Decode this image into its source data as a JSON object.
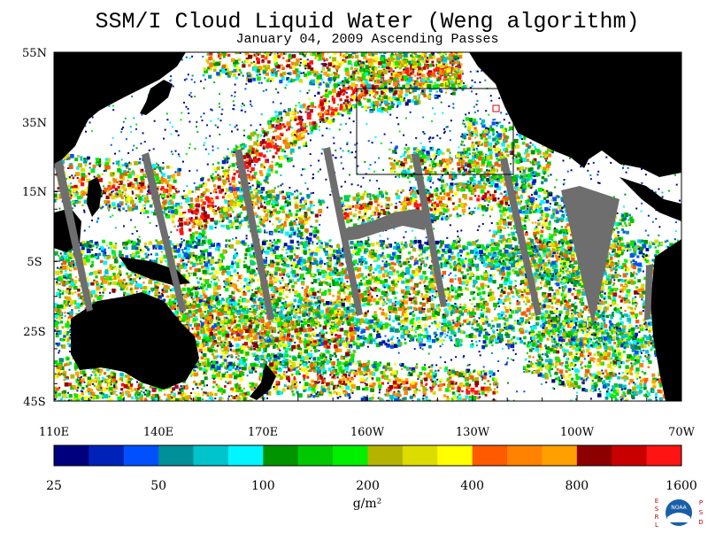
{
  "title": "SSM/I Cloud Liquid Water (Weng algorithm)",
  "subtitle": "January 04, 2009  Ascending Passes",
  "map": {
    "lat_labels": [
      "55N",
      "35N",
      "15N",
      "5S",
      "25S",
      "45S"
    ],
    "lon_labels": [
      "110E",
      "140E",
      "170E",
      "160W",
      "130W",
      "100W",
      "70W"
    ],
    "land_color": "#000000",
    "no_data_color": "#6e6e6e",
    "background_color": "#ffffff"
  },
  "colorbar": {
    "colors": [
      "#00007f",
      "#0022b8",
      "#0050ff",
      "#00909a",
      "#00c4cc",
      "#00f5ff",
      "#009400",
      "#00c800",
      "#00f000",
      "#b4b400",
      "#dcdc00",
      "#ffff00",
      "#ff5a00",
      "#ff8200",
      "#ffa000",
      "#8c0000",
      "#c80000",
      "#ff1414"
    ],
    "tick_labels": [
      "25",
      "50",
      "100",
      "200",
      "400",
      "800",
      "1600"
    ],
    "units": "g/m²"
  },
  "logo": {
    "left_letters": [
      "E",
      "S",
      "R",
      "L"
    ],
    "right_letters": [
      "P",
      "S",
      "D"
    ],
    "center_text": "NOAA"
  }
}
